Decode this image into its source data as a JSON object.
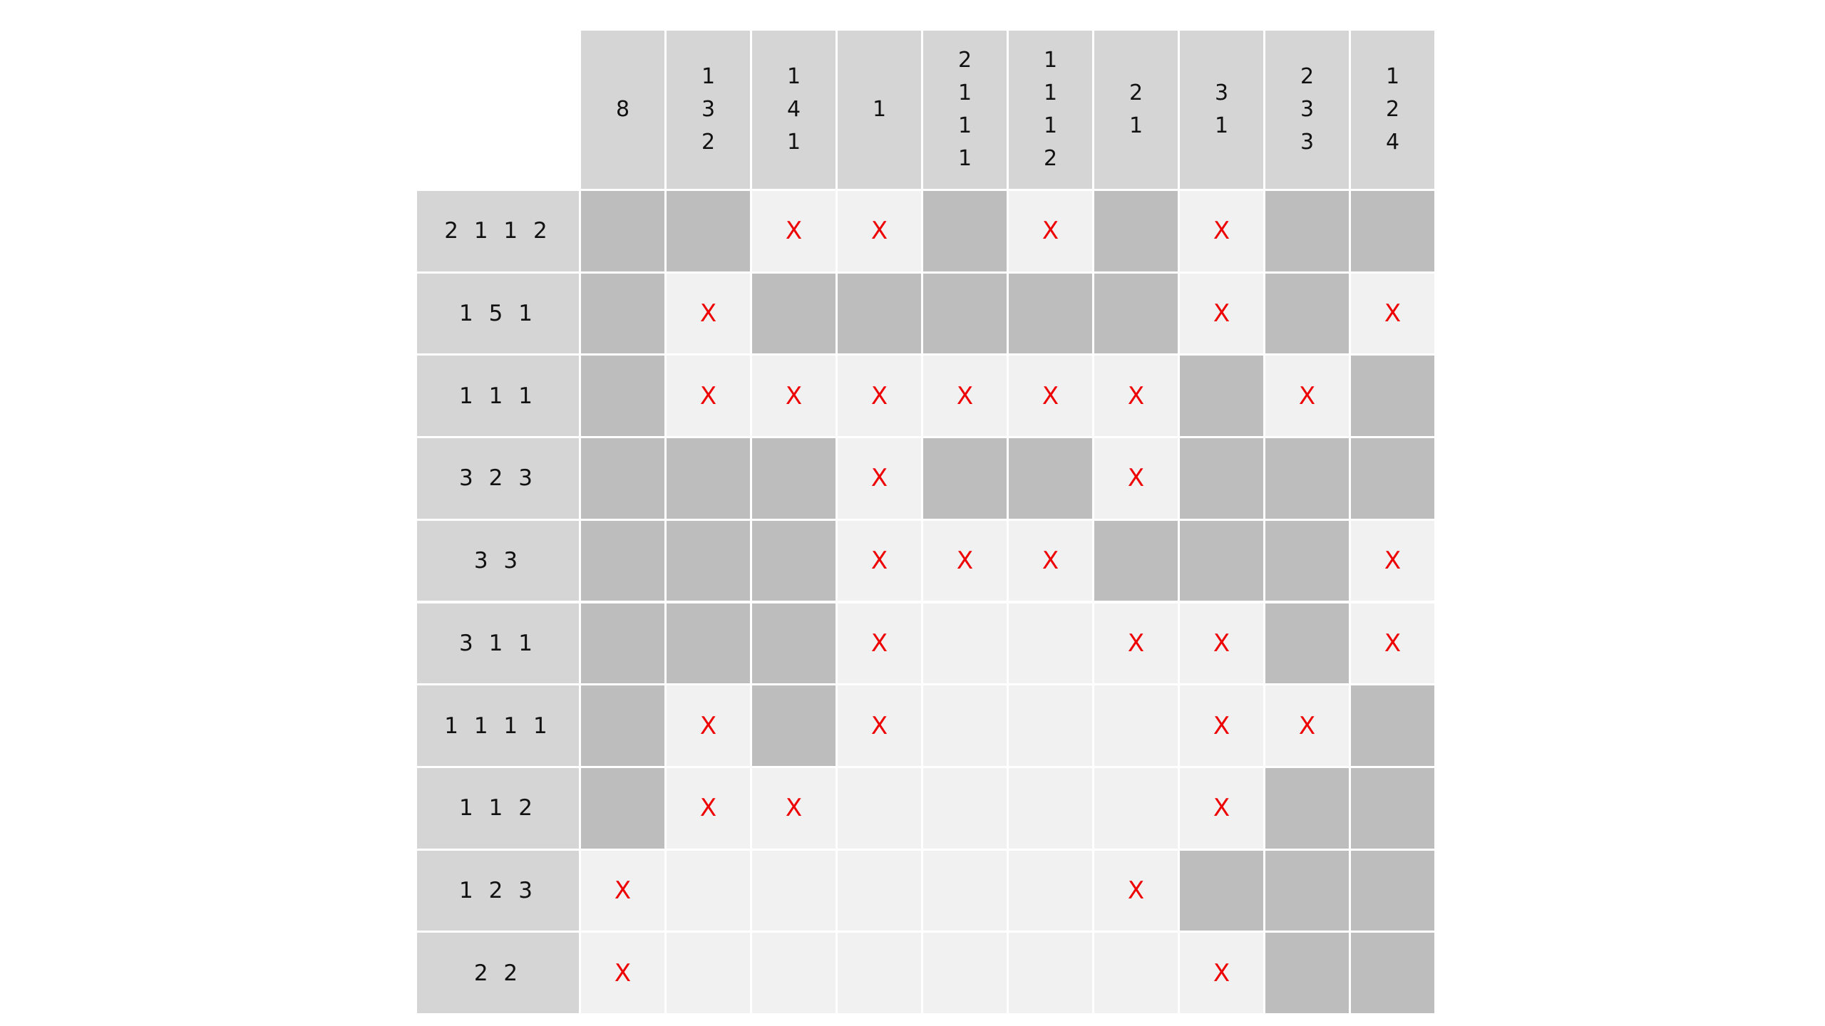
{
  "puzzle": {
    "column_clues": [
      [
        "8"
      ],
      [
        "1",
        "3",
        "2"
      ],
      [
        "1",
        "4",
        "1"
      ],
      [
        "1"
      ],
      [
        "2",
        "1",
        "1",
        "1"
      ],
      [
        "1",
        "1",
        "1",
        "2"
      ],
      [
        "2",
        "1"
      ],
      [
        "3",
        "1"
      ],
      [
        "2",
        "3",
        "3"
      ],
      [
        "1",
        "2",
        "4"
      ]
    ],
    "row_clues": [
      "2 1 1 2",
      "1 5 1",
      "1 1 1",
      "3 2 3",
      "3 3",
      "3 1 1",
      "1 1 1 1",
      "1 1 2",
      "1 2 3",
      "2 2"
    ],
    "cross_symbol": "X",
    "grid": [
      [
        "#",
        "#",
        "X",
        "X",
        "#",
        "X",
        "#",
        "X",
        "#",
        "#"
      ],
      [
        "#",
        "X",
        "#",
        "#",
        "#",
        "#",
        "#",
        "X",
        "#",
        "X"
      ],
      [
        "#",
        "X",
        "X",
        "X",
        "X",
        "X",
        "X",
        "#",
        "X",
        "#"
      ],
      [
        "#",
        "#",
        "#",
        "X",
        "#",
        "#",
        "X",
        "#",
        "#",
        "#"
      ],
      [
        "#",
        "#",
        "#",
        "X",
        "X",
        "X",
        "#",
        "#",
        "#",
        "X"
      ],
      [
        "#",
        "#",
        "#",
        "X",
        ".",
        ".",
        "X",
        "X",
        "#",
        "X"
      ],
      [
        "#",
        "X",
        "#",
        "X",
        ".",
        ".",
        ".",
        "X",
        "X",
        "#"
      ],
      [
        "#",
        "X",
        "X",
        ".",
        ".",
        ".",
        ".",
        "X",
        "#",
        "#"
      ],
      [
        "X",
        ".",
        ".",
        ".",
        ".",
        ".",
        "X",
        "#",
        "#",
        "#"
      ],
      [
        "X",
        ".",
        ".",
        ".",
        ".",
        ".",
        ".",
        "X",
        "#",
        "#"
      ]
    ],
    "colors": {
      "clue_bg": "#d5d5d5",
      "filled": "#bdbdbd",
      "empty": "#f1f1f1",
      "cross": "#ee0000",
      "text": "#111111"
    }
  }
}
